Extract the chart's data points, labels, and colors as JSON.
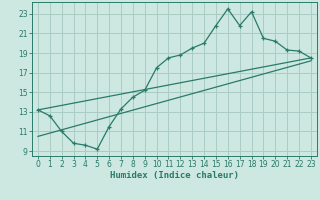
{
  "xlabel": "Humidex (Indice chaleur)",
  "bg_color": "#cce8e0",
  "grid_color": "#aaccC4",
  "line_color": "#2a7a6a",
  "xlim": [
    -0.5,
    23.5
  ],
  "ylim": [
    8.5,
    24.2
  ],
  "xticks": [
    0,
    1,
    2,
    3,
    4,
    5,
    6,
    7,
    8,
    9,
    10,
    11,
    12,
    13,
    14,
    15,
    16,
    17,
    18,
    19,
    20,
    21,
    22,
    23
  ],
  "yticks": [
    9,
    11,
    13,
    15,
    17,
    19,
    21,
    23
  ],
  "data_x": [
    0,
    1,
    2,
    3,
    4,
    5,
    6,
    7,
    8,
    9,
    10,
    11,
    12,
    13,
    14,
    15,
    16,
    17,
    18,
    19,
    20,
    21,
    22,
    23
  ],
  "data_y": [
    13.2,
    12.6,
    11.0,
    9.8,
    9.6,
    9.2,
    11.5,
    13.3,
    14.5,
    15.2,
    17.5,
    18.5,
    18.8,
    19.5,
    20.0,
    21.8,
    23.5,
    21.8,
    23.2,
    20.5,
    20.2,
    19.3,
    19.2,
    18.5
  ],
  "line1_x": [
    0,
    23
  ],
  "line1_y": [
    13.2,
    18.5
  ],
  "line2_x": [
    0,
    23
  ],
  "line2_y": [
    10.5,
    18.2
  ],
  "tick_fontsize": 5.5,
  "xlabel_fontsize": 6.5
}
